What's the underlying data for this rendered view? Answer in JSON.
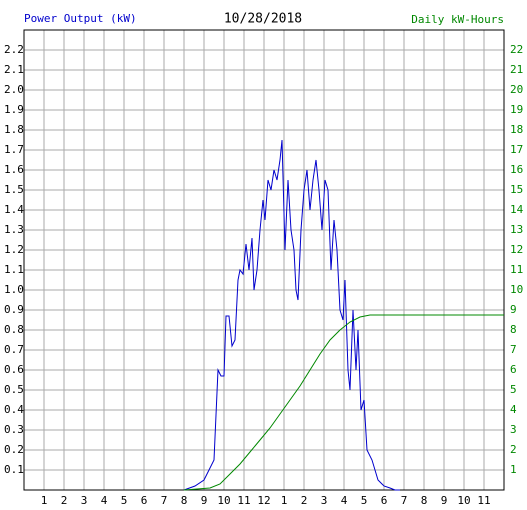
{
  "chart_data": {
    "type": "line",
    "title": "10/28/2018",
    "y_label": "Power Output (kW)",
    "y2_label": "Daily kW-Hours",
    "grid": true,
    "xlim": [
      0,
      24
    ],
    "xticks": [
      1,
      2,
      3,
      4,
      5,
      6,
      7,
      8,
      9,
      10,
      11,
      12,
      {
        "value": 13,
        "label": "1"
      },
      {
        "value": 14,
        "label": "2"
      },
      {
        "value": 15,
        "label": "3"
      },
      {
        "value": 16,
        "label": "4"
      },
      {
        "value": 17,
        "label": "5"
      },
      {
        "value": 18,
        "label": "6"
      },
      {
        "value": 19,
        "label": "7"
      },
      {
        "value": 20,
        "label": "8"
      },
      {
        "value": 21,
        "label": "9"
      },
      {
        "value": 22,
        "label": "10"
      },
      {
        "value": 23,
        "label": "11"
      }
    ],
    "ylim": [
      0,
      2.3
    ],
    "yticks": [
      0.1,
      0.2,
      0.3,
      0.4,
      0.5,
      0.6,
      0.7,
      0.8,
      0.9,
      {
        "value": 1,
        "label": "1.0"
      },
      1.1,
      1.2,
      1.3,
      1.4,
      1.5,
      1.6,
      1.7,
      1.8,
      1.9,
      {
        "value": 2,
        "label": "2.0"
      },
      2.1,
      2.2
    ],
    "y2lim": [
      0,
      23
    ],
    "y2ticks": [
      1,
      2,
      3,
      4,
      5,
      6,
      7,
      8,
      9,
      10,
      11,
      12,
      13,
      14,
      15,
      16,
      17,
      18,
      19,
      20,
      21,
      22
    ],
    "series": [
      {
        "color": "#0000cc",
        "x": [
          8,
          8.55,
          9,
          9.5,
          9.7,
          9.85,
          10,
          10.1,
          10.25,
          10.4,
          10.55,
          10.7,
          10.8,
          10.95,
          11.1,
          11.25,
          11.4,
          11.5,
          11.65,
          11.8,
          11.95,
          12.05,
          12.2,
          12.35,
          12.5,
          12.65,
          12.8,
          12.9,
          13.05,
          13.2,
          13.35,
          13.5,
          13.6,
          13.7,
          13.85,
          14,
          14.15,
          14.3,
          14.45,
          14.6,
          14.75,
          14.9,
          15.05,
          15.2,
          15.35,
          15.5,
          15.65,
          15.8,
          15.95,
          16.05,
          16.2,
          16.3,
          16.45,
          16.6,
          16.7,
          16.85,
          17,
          17.15,
          17.4,
          17.7,
          18,
          18.3,
          18.55,
          18.8
        ],
        "values": [
          0,
          0.02,
          0.05,
          0.15,
          0.6,
          0.57,
          0.57,
          0.87,
          0.87,
          0.72,
          0.75,
          1.05,
          1.1,
          1.08,
          1.23,
          1.1,
          1.26,
          1.0,
          1.1,
          1.3,
          1.45,
          1.35,
          1.55,
          1.5,
          1.6,
          1.55,
          1.65,
          1.75,
          1.2,
          1.55,
          1.3,
          1.2,
          1.0,
          0.95,
          1.3,
          1.5,
          1.6,
          1.4,
          1.55,
          1.65,
          1.5,
          1.3,
          1.55,
          1.5,
          1.1,
          1.35,
          1.2,
          0.9,
          0.85,
          1.05,
          0.6,
          0.5,
          0.9,
          0.6,
          0.8,
          0.4,
          0.45,
          0.2,
          0.15,
          0.05,
          0.02,
          0.01,
          0,
          0
        ]
      },
      {
        "color": "#008800",
        "axis": "y2",
        "x": [
          8,
          9.3,
          9.8,
          10.3,
          10.8,
          11.3,
          11.8,
          12.3,
          12.8,
          13.3,
          13.8,
          14.3,
          14.8,
          15.3,
          15.8,
          16.3,
          16.8,
          17.3,
          17.8,
          24
        ],
        "values": [
          0,
          0.1,
          0.3,
          0.8,
          1.3,
          1.9,
          2.5,
          3.1,
          3.8,
          4.5,
          5.2,
          6.0,
          6.8,
          7.5,
          8.0,
          8.4,
          8.65,
          8.75,
          8.75,
          8.75
        ]
      }
    ]
  }
}
